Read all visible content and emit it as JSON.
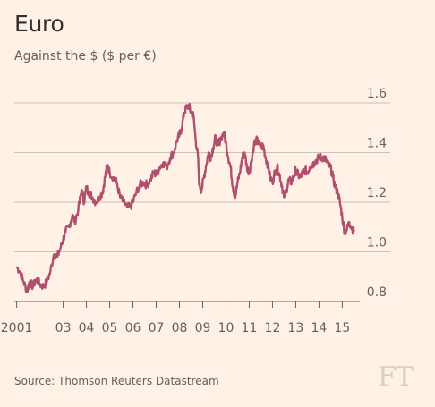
{
  "chart_data": {
    "type": "line",
    "title": "Euro",
    "subtitle": "Against the $ ($ per €)",
    "xlabel": "",
    "ylabel": "",
    "ylim": [
      0.8,
      1.6
    ],
    "xlim": [
      2000.9,
      2015.6
    ],
    "yticks": [
      0.8,
      1.0,
      1.2,
      1.4,
      1.6
    ],
    "xticks": [
      {
        "label": "2001",
        "value": 2001
      },
      {
        "label": "03",
        "value": 2003
      },
      {
        "label": "04",
        "value": 2004
      },
      {
        "label": "05",
        "value": 2005
      },
      {
        "label": "06",
        "value": 2006
      },
      {
        "label": "07",
        "value": 2007
      },
      {
        "label": "08",
        "value": 2008
      },
      {
        "label": "09",
        "value": 2009
      },
      {
        "label": "10",
        "value": 2010
      },
      {
        "label": "11",
        "value": 2011
      },
      {
        "label": "12",
        "value": 2012
      },
      {
        "label": "13",
        "value": 2013
      },
      {
        "label": "14",
        "value": 2014
      },
      {
        "label": "15",
        "value": 2015
      }
    ],
    "grid": true,
    "line_color": "#b0506e",
    "series": [
      {
        "name": "",
        "x": [
          2001.0,
          2001.15,
          2001.3,
          2001.45,
          2001.55,
          2001.7,
          2001.85,
          2002.0,
          2002.15,
          2002.3,
          2002.45,
          2002.6,
          2002.75,
          2002.9,
          2003.0,
          2003.1,
          2003.25,
          2003.4,
          2003.5,
          2003.65,
          2003.8,
          2003.9,
          2004.0,
          2004.1,
          2004.25,
          2004.4,
          2004.55,
          2004.7,
          2004.8,
          2004.9,
          2005.0,
          2005.15,
          2005.3,
          2005.45,
          2005.6,
          2005.75,
          2005.9,
          2006.0,
          2006.15,
          2006.3,
          2006.45,
          2006.6,
          2006.75,
          2006.9,
          2007.0,
          2007.15,
          2007.3,
          2007.45,
          2007.6,
          2007.75,
          2007.9,
          2008.0,
          2008.1,
          2008.2,
          2008.3,
          2008.4,
          2008.5,
          2008.6,
          2008.7,
          2008.8,
          2008.85,
          2008.95,
          2009.05,
          2009.15,
          2009.25,
          2009.35,
          2009.45,
          2009.55,
          2009.65,
          2009.75,
          2009.9,
          2010.0,
          2010.1,
          2010.2,
          2010.3,
          2010.4,
          2010.5,
          2010.6,
          2010.7,
          2010.8,
          2010.9,
          2011.0,
          2011.1,
          2011.2,
          2011.3,
          2011.4,
          2011.5,
          2011.6,
          2011.7,
          2011.8,
          2011.9,
          2012.0,
          2012.1,
          2012.2,
          2012.3,
          2012.4,
          2012.5,
          2012.6,
          2012.7,
          2012.8,
          2012.9,
          2013.0,
          2013.1,
          2013.2,
          2013.3,
          2013.4,
          2013.5,
          2013.6,
          2013.7,
          2013.8,
          2013.9,
          2014.0,
          2014.1,
          2014.2,
          2014.3,
          2014.4,
          2014.5,
          2014.6,
          2014.7,
          2014.8,
          2014.9,
          2015.0,
          2015.1,
          2015.2,
          2015.3,
          2015.4,
          2015.5
        ],
        "values": [
          0.94,
          0.92,
          0.88,
          0.84,
          0.88,
          0.86,
          0.89,
          0.87,
          0.86,
          0.88,
          0.92,
          0.99,
          0.98,
          1.02,
          1.05,
          1.08,
          1.1,
          1.15,
          1.12,
          1.17,
          1.25,
          1.2,
          1.26,
          1.24,
          1.22,
          1.2,
          1.22,
          1.24,
          1.3,
          1.35,
          1.32,
          1.3,
          1.28,
          1.22,
          1.2,
          1.18,
          1.18,
          1.2,
          1.24,
          1.27,
          1.28,
          1.27,
          1.29,
          1.32,
          1.31,
          1.34,
          1.36,
          1.34,
          1.38,
          1.4,
          1.45,
          1.47,
          1.5,
          1.56,
          1.58,
          1.59,
          1.56,
          1.55,
          1.45,
          1.38,
          1.27,
          1.25,
          1.3,
          1.35,
          1.4,
          1.38,
          1.42,
          1.46,
          1.43,
          1.45,
          1.48,
          1.44,
          1.38,
          1.34,
          1.26,
          1.22,
          1.28,
          1.32,
          1.38,
          1.4,
          1.34,
          1.32,
          1.37,
          1.43,
          1.45,
          1.44,
          1.42,
          1.43,
          1.38,
          1.35,
          1.3,
          1.28,
          1.32,
          1.34,
          1.31,
          1.27,
          1.22,
          1.25,
          1.29,
          1.28,
          1.3,
          1.33,
          1.31,
          1.3,
          1.32,
          1.33,
          1.32,
          1.34,
          1.35,
          1.36,
          1.37,
          1.38,
          1.38,
          1.38,
          1.37,
          1.35,
          1.34,
          1.3,
          1.26,
          1.24,
          1.2,
          1.14,
          1.08,
          1.09,
          1.12,
          1.1,
          1.08
        ]
      }
    ]
  },
  "footer": {
    "source": "Source: Thomson Reuters Datastream",
    "logo": "FT"
  }
}
